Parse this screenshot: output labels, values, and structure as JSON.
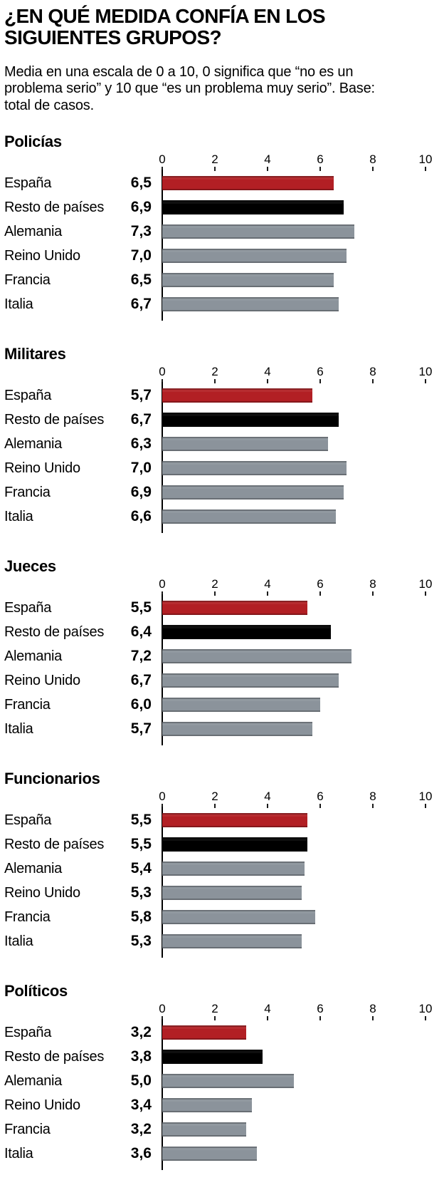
{
  "page": {
    "title_lines": [
      "¿EN QUÉ MEDIDA CONFÍA EN LOS",
      "SIGUIENTES GRUPOS?"
    ],
    "subtitle_lines": [
      "Media en una escala de 0 a 10, 0 significa que “no es un",
      "problema serio” y 10 que “es un problema muy serio”. Base:",
      "total de casos."
    ]
  },
  "axis": {
    "ticks": [
      "0",
      "2",
      "4",
      "6",
      "8",
      "10"
    ],
    "min": 0,
    "max": 10,
    "grid": false
  },
  "colors": {
    "espana_bar": "#b21f24",
    "resto_bar": "#000000",
    "country_bar": "#8b939b",
    "axis_line": "#000000",
    "text": "#000000"
  },
  "chart_data": [
    {
      "type": "bar",
      "orientation": "horizontal",
      "title": "Policías",
      "xlim": [
        0,
        10
      ],
      "categories": [
        "España",
        "Resto de países",
        "Alemania",
        "Reino Unido",
        "Francia",
        "Italia"
      ],
      "values": [
        6.5,
        6.9,
        7.3,
        7.0,
        6.5,
        6.7
      ],
      "value_labels": [
        "6,5",
        "6,9",
        "7,3",
        "7,0",
        "6,5",
        "6,7"
      ]
    },
    {
      "type": "bar",
      "orientation": "horizontal",
      "title": "Militares",
      "xlim": [
        0,
        10
      ],
      "categories": [
        "España",
        "Resto de países",
        "Alemania",
        "Reino Unido",
        "Francia",
        "Italia"
      ],
      "values": [
        5.7,
        6.7,
        6.3,
        7.0,
        6.9,
        6.6
      ],
      "value_labels": [
        "5,7",
        "6,7",
        "6,3",
        "7,0",
        "6,9",
        "6,6"
      ]
    },
    {
      "type": "bar",
      "orientation": "horizontal",
      "title": "Jueces",
      "xlim": [
        0,
        10
      ],
      "categories": [
        "España",
        "Resto de países",
        "Alemania",
        "Reino Unido",
        "Francia",
        "Italia"
      ],
      "values": [
        5.5,
        6.4,
        7.2,
        6.7,
        6.0,
        5.7
      ],
      "value_labels": [
        "5,5",
        "6,4",
        "7,2",
        "6,7",
        "6,0",
        "5,7"
      ]
    },
    {
      "type": "bar",
      "orientation": "horizontal",
      "title": "Funcionarios",
      "xlim": [
        0,
        10
      ],
      "categories": [
        "España",
        "Resto de países",
        "Alemania",
        "Reino Unido",
        "Francia",
        "Italia"
      ],
      "values": [
        5.5,
        5.5,
        5.4,
        5.3,
        5.8,
        5.3
      ],
      "value_labels": [
        "5,5",
        "5,5",
        "5,4",
        "5,3",
        "5,8",
        "5,3"
      ]
    },
    {
      "type": "bar",
      "orientation": "horizontal",
      "title": "Políticos",
      "xlim": [
        0,
        10
      ],
      "categories": [
        "España",
        "Resto de países",
        "Alemania",
        "Reino Unido",
        "Francia",
        "Italia"
      ],
      "values": [
        3.2,
        3.8,
        5.0,
        3.4,
        3.2,
        3.6
      ],
      "value_labels": [
        "3,2",
        "3,8",
        "5,0",
        "3,4",
        "3,2",
        "3,6"
      ]
    }
  ]
}
